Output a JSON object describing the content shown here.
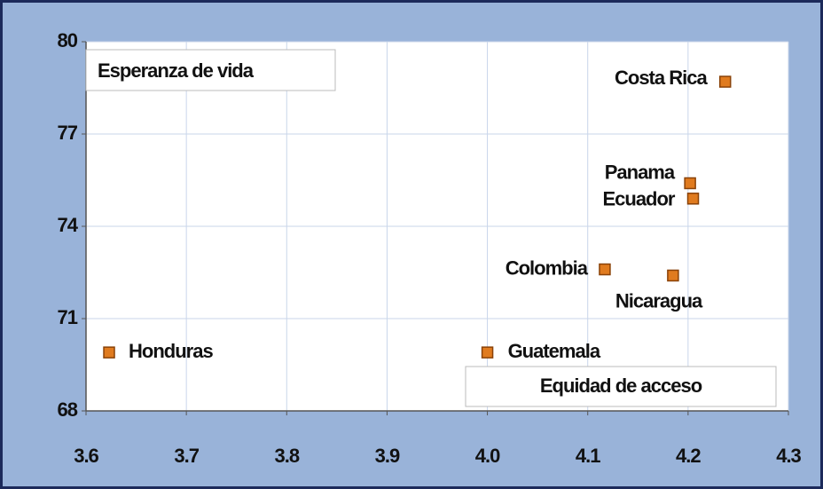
{
  "chart_data": {
    "type": "scatter",
    "ylabel": "Esperanza de vida",
    "xlabel": "Equidad de acceso",
    "point_labels": [
      "Costa Rica",
      "Panama",
      "Ecuador",
      "Colombia",
      "Nicaragua",
      "Honduras",
      "Guatemala"
    ],
    "x": [
      4.237,
      4.202,
      4.205,
      4.117,
      4.185,
      3.623,
      4.0
    ],
    "values": [
      78.7,
      75.4,
      74.9,
      72.6,
      72.4,
      69.9,
      69.9
    ],
    "color": "#e07b1f",
    "xlim": [
      3.6,
      4.3
    ],
    "xticks": [
      3.6,
      3.7,
      3.8,
      3.9,
      {
        "value": 4,
        "label": "4.0"
      },
      4.1,
      4.2,
      4.3
    ],
    "ylim": [
      68,
      80
    ],
    "yticks": [
      68,
      71,
      74,
      77,
      80
    ],
    "grid": true
  }
}
